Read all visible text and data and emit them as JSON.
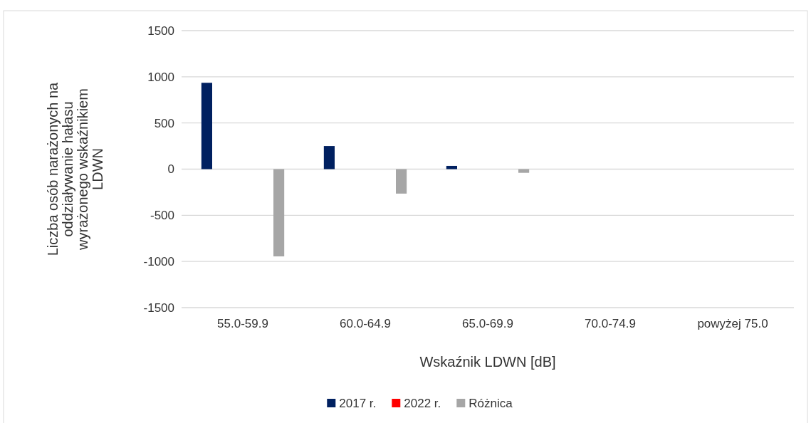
{
  "chart_data": {
    "type": "bar",
    "xlabel": "Wskaźnik LDWN [dB]",
    "ylabel": "Liczba osób narażonych na oddziaływanie hałasu wyrażonego wskaźnikiem LDWN",
    "categories": [
      "55.0-59.9",
      "60.0-64.9",
      "65.0-69.9",
      "70.0-74.9",
      "powyżej 75.0"
    ],
    "series": [
      {
        "name": "2017 r.",
        "color": "#002060",
        "values": [
          935,
          250,
          35,
          0,
          0
        ]
      },
      {
        "name": "2022 r.",
        "color": "#ff0000",
        "values": [
          0,
          0,
          0,
          0,
          0
        ]
      },
      {
        "name": "Różnica",
        "color": "#a6a6a6",
        "values": [
          -945,
          -265,
          -40,
          0,
          0
        ]
      }
    ],
    "ylim": [
      -1500,
      1500
    ],
    "yticks": [
      -1500,
      -1000,
      -500,
      0,
      500,
      1000,
      1500
    ],
    "grid": "y",
    "legend": "bottom"
  }
}
